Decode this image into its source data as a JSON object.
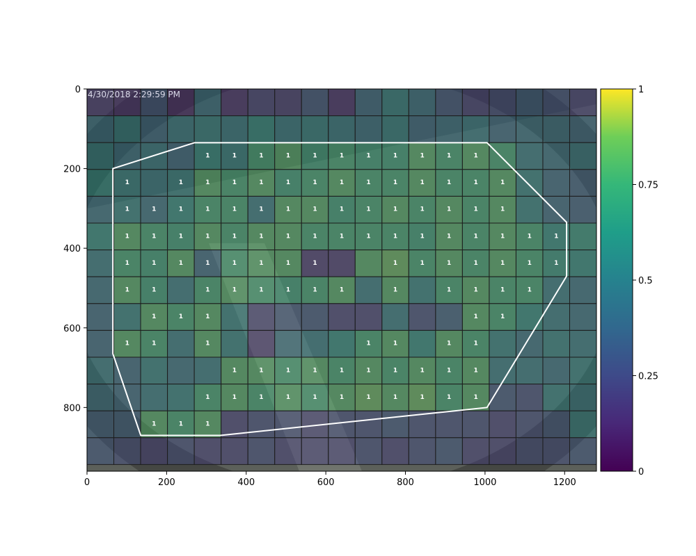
{
  "chart_data": {
    "type": "heatmap",
    "title": "",
    "xlabel": "",
    "ylabel": "",
    "image_overlay_text": "4/30/2018 2:29:59 PM",
    "xlim": [
      0,
      1280
    ],
    "ylim": [
      960,
      0
    ],
    "x_ticks": [
      0,
      200,
      400,
      600,
      800,
      1000,
      1200
    ],
    "y_ticks": [
      0,
      200,
      400,
      600,
      800
    ],
    "grid": {
      "cols": 19,
      "rows": 14,
      "cell_size_units": 67.37
    },
    "colorbar": {
      "colormap": "viridis",
      "range": [
        0,
        1
      ],
      "ticks": [
        0,
        0.25,
        0.5,
        0.75,
        1
      ],
      "tick_labels": [
        "0",
        "0.25",
        "0.5",
        "0.75",
        "1"
      ]
    },
    "values": [
      [
        0.15,
        0.12,
        0.3,
        0.1,
        0.45,
        0.12,
        0.2,
        0.18,
        0.3,
        0.12,
        0.4,
        0.55,
        0.45,
        0.3,
        0.2,
        0.25,
        0.35,
        0.28,
        0.2
      ],
      [
        0.45,
        0.55,
        0.4,
        0.5,
        0.55,
        0.5,
        0.6,
        0.5,
        0.55,
        0.5,
        0.45,
        0.55,
        0.4,
        0.45,
        0.5,
        0.4,
        0.45,
        0.45,
        0.4
      ],
      [
        0.55,
        0.45,
        0.5,
        0.4,
        0.6,
        0.55,
        0.75,
        0.8,
        0.7,
        0.75,
        0.7,
        0.7,
        0.8,
        0.75,
        0.8,
        0.75,
        0.5,
        0.45,
        0.5
      ],
      [
        0.6,
        0.55,
        0.5,
        0.55,
        0.8,
        0.75,
        0.8,
        0.7,
        0.75,
        0.8,
        0.75,
        0.75,
        0.8,
        0.75,
        0.75,
        0.8,
        0.55,
        0.4,
        0.35
      ],
      [
        0.45,
        0.55,
        0.45,
        0.6,
        0.75,
        0.75,
        0.5,
        0.8,
        0.8,
        0.7,
        0.75,
        0.8,
        0.75,
        0.8,
        0.75,
        0.8,
        0.55,
        0.4,
        0.35
      ],
      [
        0.6,
        0.8,
        0.75,
        0.7,
        0.8,
        0.75,
        0.8,
        0.8,
        0.75,
        0.75,
        0.75,
        0.75,
        0.7,
        0.8,
        0.75,
        0.8,
        0.75,
        0.6,
        0.65
      ],
      [
        0.5,
        0.75,
        0.7,
        0.8,
        0.4,
        0.75,
        0.8,
        0.8,
        0.15,
        0.15,
        0.8,
        0.85,
        0.75,
        0.8,
        0.75,
        0.8,
        0.75,
        0.65,
        0.6
      ],
      [
        0.45,
        0.8,
        0.7,
        0.5,
        0.75,
        0.8,
        0.75,
        0.7,
        0.75,
        0.8,
        0.5,
        0.8,
        0.55,
        0.75,
        0.8,
        0.75,
        0.75,
        0.5,
        0.45
      ],
      [
        0.4,
        0.55,
        0.8,
        0.75,
        0.8,
        0.55,
        0.2,
        0.3,
        0.3,
        0.2,
        0.2,
        0.5,
        0.25,
        0.35,
        0.8,
        0.75,
        0.6,
        0.5,
        0.45
      ],
      [
        0.4,
        0.8,
        0.75,
        0.5,
        0.8,
        0.55,
        0.15,
        0.45,
        0.5,
        0.6,
        0.75,
        0.8,
        0.6,
        0.8,
        0.75,
        0.55,
        0.45,
        0.55,
        0.5
      ],
      [
        0.5,
        0.4,
        0.55,
        0.45,
        0.5,
        0.8,
        0.8,
        0.75,
        0.8,
        0.75,
        0.8,
        0.75,
        0.8,
        0.75,
        0.8,
        0.5,
        0.5,
        0.45,
        0.55
      ],
      [
        0.45,
        0.4,
        0.5,
        0.55,
        0.75,
        0.8,
        0.75,
        0.8,
        0.75,
        0.8,
        0.85,
        0.8,
        0.85,
        0.75,
        0.8,
        0.3,
        0.25,
        0.55,
        0.5
      ],
      [
        0.35,
        0.35,
        0.8,
        0.75,
        0.8,
        0.2,
        0.25,
        0.25,
        0.2,
        0.25,
        0.25,
        0.3,
        0.25,
        0.25,
        0.25,
        0.2,
        0.25,
        0.3,
        0.55
      ],
      [
        0.3,
        0.25,
        0.2,
        0.25,
        0.2,
        0.2,
        0.25,
        0.2,
        0.2,
        0.2,
        0.25,
        0.2,
        0.25,
        0.3,
        0.2,
        0.2,
        0.25,
        0.25,
        0.3
      ]
    ],
    "cell_labels": [
      {
        "row": 2,
        "col": 4,
        "text": "1"
      },
      {
        "row": 2,
        "col": 5,
        "text": "1"
      },
      {
        "row": 2,
        "col": 6,
        "text": "1"
      },
      {
        "row": 2,
        "col": 7,
        "text": "1"
      },
      {
        "row": 2,
        "col": 8,
        "text": "1"
      },
      {
        "row": 2,
        "col": 9,
        "text": "1"
      },
      {
        "row": 2,
        "col": 10,
        "text": "1"
      },
      {
        "row": 2,
        "col": 11,
        "text": "1"
      },
      {
        "row": 2,
        "col": 12,
        "text": "1"
      },
      {
        "row": 2,
        "col": 13,
        "text": "1"
      },
      {
        "row": 2,
        "col": 14,
        "text": "1"
      },
      {
        "row": 3,
        "col": 1,
        "text": "1"
      },
      {
        "row": 3,
        "col": 3,
        "text": "1"
      },
      {
        "row": 3,
        "col": 4,
        "text": "1"
      },
      {
        "row": 3,
        "col": 5,
        "text": "1"
      },
      {
        "row": 3,
        "col": 6,
        "text": "1"
      },
      {
        "row": 3,
        "col": 7,
        "text": "1"
      },
      {
        "row": 3,
        "col": 8,
        "text": "1"
      },
      {
        "row": 3,
        "col": 9,
        "text": "1"
      },
      {
        "row": 3,
        "col": 10,
        "text": "1"
      },
      {
        "row": 3,
        "col": 11,
        "text": "1"
      },
      {
        "row": 3,
        "col": 12,
        "text": "1"
      },
      {
        "row": 3,
        "col": 13,
        "text": "1"
      },
      {
        "row": 3,
        "col": 14,
        "text": "1"
      },
      {
        "row": 3,
        "col": 15,
        "text": "1"
      },
      {
        "row": 4,
        "col": 1,
        "text": "1"
      },
      {
        "row": 4,
        "col": 2,
        "text": "1"
      },
      {
        "row": 4,
        "col": 3,
        "text": "1"
      },
      {
        "row": 4,
        "col": 4,
        "text": "1"
      },
      {
        "row": 4,
        "col": 5,
        "text": "1"
      },
      {
        "row": 4,
        "col": 6,
        "text": "1"
      },
      {
        "row": 4,
        "col": 7,
        "text": "1"
      },
      {
        "row": 4,
        "col": 8,
        "text": "1"
      },
      {
        "row": 4,
        "col": 9,
        "text": "1"
      },
      {
        "row": 4,
        "col": 10,
        "text": "1"
      },
      {
        "row": 4,
        "col": 11,
        "text": "1"
      },
      {
        "row": 4,
        "col": 12,
        "text": "1"
      },
      {
        "row": 4,
        "col": 13,
        "text": "1"
      },
      {
        "row": 4,
        "col": 14,
        "text": "1"
      },
      {
        "row": 4,
        "col": 15,
        "text": "1"
      },
      {
        "row": 5,
        "col": 1,
        "text": "1"
      },
      {
        "row": 5,
        "col": 2,
        "text": "1"
      },
      {
        "row": 5,
        "col": 3,
        "text": "1"
      },
      {
        "row": 5,
        "col": 4,
        "text": "1"
      },
      {
        "row": 5,
        "col": 5,
        "text": "1"
      },
      {
        "row": 5,
        "col": 6,
        "text": "1"
      },
      {
        "row": 5,
        "col": 7,
        "text": "1"
      },
      {
        "row": 5,
        "col": 8,
        "text": "1"
      },
      {
        "row": 5,
        "col": 9,
        "text": "1"
      },
      {
        "row": 5,
        "col": 10,
        "text": "1"
      },
      {
        "row": 5,
        "col": 11,
        "text": "1"
      },
      {
        "row": 5,
        "col": 12,
        "text": "1"
      },
      {
        "row": 5,
        "col": 13,
        "text": "1"
      },
      {
        "row": 5,
        "col": 14,
        "text": "1"
      },
      {
        "row": 5,
        "col": 15,
        "text": "1"
      },
      {
        "row": 5,
        "col": 16,
        "text": "1"
      },
      {
        "row": 5,
        "col": 17,
        "text": "1"
      },
      {
        "row": 6,
        "col": 1,
        "text": "1"
      },
      {
        "row": 6,
        "col": 2,
        "text": "1"
      },
      {
        "row": 6,
        "col": 3,
        "text": "1"
      },
      {
        "row": 6,
        "col": 4,
        "text": "1"
      },
      {
        "row": 6,
        "col": 5,
        "text": "1"
      },
      {
        "row": 6,
        "col": 6,
        "text": "1"
      },
      {
        "row": 6,
        "col": 7,
        "text": "1"
      },
      {
        "row": 6,
        "col": 8,
        "text": "1"
      },
      {
        "row": 6,
        "col": 11,
        "text": "1"
      },
      {
        "row": 6,
        "col": 12,
        "text": "1"
      },
      {
        "row": 6,
        "col": 13,
        "text": "1"
      },
      {
        "row": 6,
        "col": 14,
        "text": "1"
      },
      {
        "row": 6,
        "col": 15,
        "text": "1"
      },
      {
        "row": 6,
        "col": 16,
        "text": "1"
      },
      {
        "row": 6,
        "col": 17,
        "text": "1"
      },
      {
        "row": 7,
        "col": 1,
        "text": "1"
      },
      {
        "row": 7,
        "col": 2,
        "text": "1"
      },
      {
        "row": 7,
        "col": 4,
        "text": "1"
      },
      {
        "row": 7,
        "col": 5,
        "text": "1"
      },
      {
        "row": 7,
        "col": 6,
        "text": "1"
      },
      {
        "row": 7,
        "col": 7,
        "text": "1"
      },
      {
        "row": 7,
        "col": 8,
        "text": "1"
      },
      {
        "row": 7,
        "col": 9,
        "text": "1"
      },
      {
        "row": 7,
        "col": 11,
        "text": "1"
      },
      {
        "row": 7,
        "col": 13,
        "text": "1"
      },
      {
        "row": 7,
        "col": 14,
        "text": "1"
      },
      {
        "row": 7,
        "col": 15,
        "text": "1"
      },
      {
        "row": 7,
        "col": 16,
        "text": "1"
      },
      {
        "row": 8,
        "col": 2,
        "text": "1"
      },
      {
        "row": 8,
        "col": 3,
        "text": "1"
      },
      {
        "row": 8,
        "col": 4,
        "text": "1"
      },
      {
        "row": 8,
        "col": 14,
        "text": "1"
      },
      {
        "row": 8,
        "col": 15,
        "text": "1"
      },
      {
        "row": 9,
        "col": 1,
        "text": "1"
      },
      {
        "row": 9,
        "col": 2,
        "text": "1"
      },
      {
        "row": 9,
        "col": 4,
        "text": "1"
      },
      {
        "row": 9,
        "col": 10,
        "text": "1"
      },
      {
        "row": 9,
        "col": 11,
        "text": "1"
      },
      {
        "row": 9,
        "col": 13,
        "text": "1"
      },
      {
        "row": 9,
        "col": 14,
        "text": "1"
      },
      {
        "row": 10,
        "col": 5,
        "text": "1"
      },
      {
        "row": 10,
        "col": 6,
        "text": "1"
      },
      {
        "row": 10,
        "col": 7,
        "text": "1"
      },
      {
        "row": 10,
        "col": 8,
        "text": "1"
      },
      {
        "row": 10,
        "col": 9,
        "text": "1"
      },
      {
        "row": 10,
        "col": 10,
        "text": "1"
      },
      {
        "row": 10,
        "col": 11,
        "text": "1"
      },
      {
        "row": 10,
        "col": 12,
        "text": "1"
      },
      {
        "row": 10,
        "col": 13,
        "text": "1"
      },
      {
        "row": 10,
        "col": 14,
        "text": "1"
      },
      {
        "row": 11,
        "col": 4,
        "text": "1"
      },
      {
        "row": 11,
        "col": 5,
        "text": "1"
      },
      {
        "row": 11,
        "col": 6,
        "text": "1"
      },
      {
        "row": 11,
        "col": 7,
        "text": "1"
      },
      {
        "row": 11,
        "col": 8,
        "text": "1"
      },
      {
        "row": 11,
        "col": 9,
        "text": "1"
      },
      {
        "row": 11,
        "col": 10,
        "text": "1"
      },
      {
        "row": 11,
        "col": 11,
        "text": "1"
      },
      {
        "row": 11,
        "col": 12,
        "text": "1"
      },
      {
        "row": 11,
        "col": 13,
        "text": "1"
      },
      {
        "row": 11,
        "col": 14,
        "text": "1"
      },
      {
        "row": 12,
        "col": 2,
        "text": "1"
      },
      {
        "row": 12,
        "col": 3,
        "text": "1"
      },
      {
        "row": 12,
        "col": 4,
        "text": "1"
      }
    ],
    "region_polygon": [
      [
        65,
        200
      ],
      [
        270,
        135
      ],
      [
        1005,
        135
      ],
      [
        1205,
        335
      ],
      [
        1205,
        470
      ],
      [
        1005,
        800
      ],
      [
        335,
        870
      ],
      [
        135,
        870
      ],
      [
        65,
        665
      ]
    ],
    "region_color": "#ffffff"
  }
}
